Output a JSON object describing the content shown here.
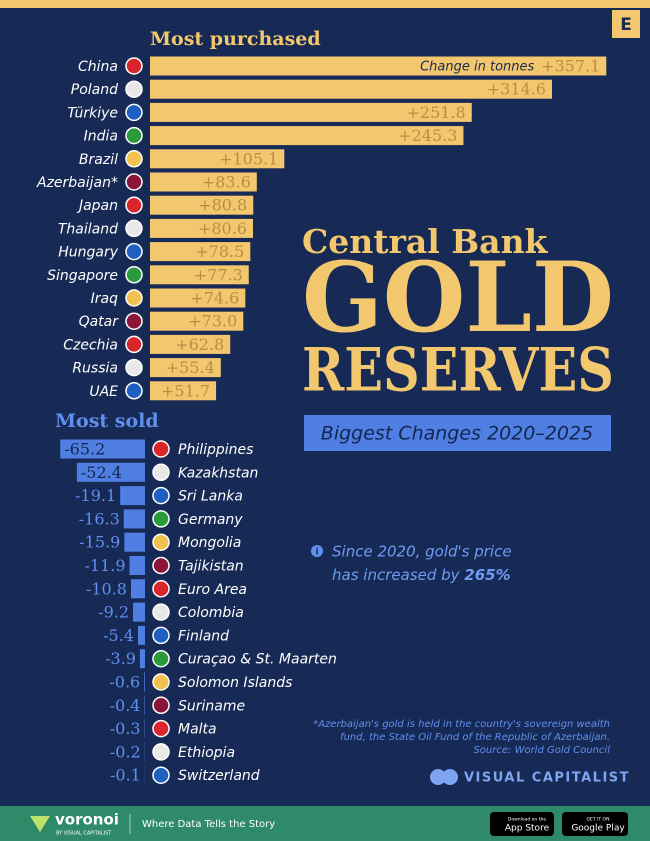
{
  "chart_data": [
    {
      "type": "bar",
      "orientation": "horizontal",
      "title": "Most purchased",
      "annotation": "Change in tonnes",
      "categories": [
        "China",
        "Poland",
        "Türkiye",
        "India",
        "Brazil",
        "Azerbaijan*",
        "Japan",
        "Thailand",
        "Hungary",
        "Singapore",
        "Iraq",
        "Qatar",
        "Czechia",
        "Russia",
        "UAE"
      ],
      "values": [
        357.1,
        314.6,
        251.8,
        245.3,
        105.1,
        83.6,
        80.8,
        80.6,
        78.5,
        77.3,
        74.6,
        73.0,
        62.8,
        55.4,
        51.7
      ],
      "value_labels": [
        "+357.1",
        "+314.6",
        "+251.8",
        "+245.3",
        "+105.1",
        "+83.6",
        "+80.8",
        "+80.6",
        "+78.5",
        "+77.3",
        "+74.6",
        "+73.0",
        "+62.8",
        "+55.4",
        "+51.7"
      ],
      "xlim": [
        0,
        360
      ],
      "color": "#f2c76d"
    },
    {
      "type": "bar",
      "orientation": "horizontal",
      "title": "Most sold",
      "categories": [
        "Philippines",
        "Kazakhstan",
        "Sri Lanka",
        "Germany",
        "Mongolia",
        "Tajikistan",
        "Euro Area",
        "Colombia",
        "Finland",
        "Curaçao & St. Maarten",
        "Solomon Islands",
        "Suriname",
        "Malta",
        "Ethiopia",
        "Switzerland"
      ],
      "values": [
        -65.2,
        -52.4,
        -19.1,
        -16.3,
        -15.9,
        -11.9,
        -10.8,
        -9.2,
        -5.4,
        -3.9,
        -0.6,
        -0.4,
        -0.3,
        -0.2,
        -0.1
      ],
      "xlim": [
        -70,
        0
      ],
      "color": "#4f7fe3"
    }
  ],
  "header": {
    "kicker": "Central Bank",
    "title": "GOLD",
    "title2": "RESERVES",
    "subtitle": "Biggest Changes 2020–2025",
    "badge": "E"
  },
  "note": {
    "line1": "Since 2020, gold's price",
    "line2": "has increased by ",
    "highlight": "265%"
  },
  "footnote": {
    "line1": "*Azerbaijan's gold is held in the country's sovereign wealth",
    "line2": "fund, the State Oil Fund of the Republic of Azerbaijan.",
    "source": "Source: World Gold Council"
  },
  "brand": "VISUAL CAPITALIST",
  "footer": {
    "logo": "voronoi",
    "logo_sub": "BY VISUAL CAPITALIST",
    "tagline": "Where Data Tells the Story",
    "app_store_small": "Download on the",
    "app_store": "App Store",
    "google_small": "GET IT ON",
    "google": "Google Play"
  }
}
